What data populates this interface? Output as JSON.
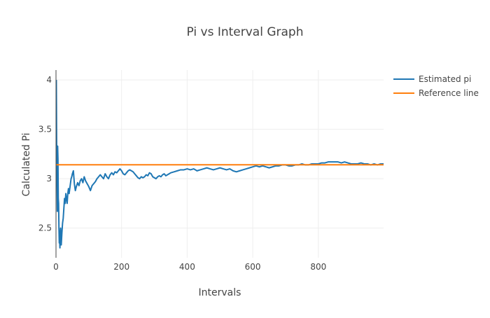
{
  "chart_data": {
    "type": "line",
    "title": "Pi vs Interval Graph",
    "xlabel": "Intervals",
    "ylabel": "Calculated Pi",
    "xlim": [
      0,
      999
    ],
    "ylim": [
      2.2,
      4.1
    ],
    "x_ticks": [
      0,
      200,
      400,
      600,
      800
    ],
    "y_ticks": [
      2.5,
      3,
      3.5,
      4
    ],
    "x_tick_labels": [
      "0",
      "200",
      "400",
      "600",
      "800"
    ],
    "y_tick_labels": [
      "2.5",
      "3",
      "3.5",
      "4"
    ],
    "grid": true,
    "legend_position": "top-right",
    "series": [
      {
        "name": "Estimated pi",
        "color": "#1f77b4",
        "points": [
          [
            1,
            4.0
          ],
          [
            2,
            3.33
          ],
          [
            3,
            3.0
          ],
          [
            4,
            2.67
          ],
          [
            5,
            3.33
          ],
          [
            6,
            3.2
          ],
          [
            7,
            2.8
          ],
          [
            8,
            2.75
          ],
          [
            9,
            2.5
          ],
          [
            10,
            2.35
          ],
          [
            11,
            2.4
          ],
          [
            12,
            2.3
          ],
          [
            13,
            2.45
          ],
          [
            14,
            2.5
          ],
          [
            15,
            2.4
          ],
          [
            16,
            2.33
          ],
          [
            18,
            2.45
          ],
          [
            20,
            2.55
          ],
          [
            22,
            2.6
          ],
          [
            24,
            2.7
          ],
          [
            26,
            2.8
          ],
          [
            28,
            2.75
          ],
          [
            30,
            2.85
          ],
          [
            32,
            2.8
          ],
          [
            34,
            2.75
          ],
          [
            36,
            2.85
          ],
          [
            38,
            2.9
          ],
          [
            40,
            2.85
          ],
          [
            42,
            2.9
          ],
          [
            44,
            2.95
          ],
          [
            46,
            3.0
          ],
          [
            48,
            3.02
          ],
          [
            50,
            3.05
          ],
          [
            53,
            3.08
          ],
          [
            56,
            2.95
          ],
          [
            59,
            2.88
          ],
          [
            62,
            2.92
          ],
          [
            66,
            2.96
          ],
          [
            70,
            2.93
          ],
          [
            74,
            2.98
          ],
          [
            78,
            3.0
          ],
          [
            82,
            2.96
          ],
          [
            86,
            3.02
          ],
          [
            90,
            2.98
          ],
          [
            95,
            2.95
          ],
          [
            100,
            2.92
          ],
          [
            105,
            2.88
          ],
          [
            110,
            2.93
          ],
          [
            115,
            2.95
          ],
          [
            120,
            2.97
          ],
          [
            125,
            3.0
          ],
          [
            130,
            3.02
          ],
          [
            135,
            3.04
          ],
          [
            140,
            3.02
          ],
          [
            145,
            3.0
          ],
          [
            150,
            3.05
          ],
          [
            155,
            3.02
          ],
          [
            160,
            3.0
          ],
          [
            165,
            3.04
          ],
          [
            170,
            3.06
          ],
          [
            175,
            3.04
          ],
          [
            180,
            3.07
          ],
          [
            185,
            3.06
          ],
          [
            190,
            3.08
          ],
          [
            195,
            3.1
          ],
          [
            200,
            3.08
          ],
          [
            205,
            3.05
          ],
          [
            210,
            3.04
          ],
          [
            215,
            3.06
          ],
          [
            220,
            3.08
          ],
          [
            225,
            3.09
          ],
          [
            230,
            3.08
          ],
          [
            235,
            3.07
          ],
          [
            240,
            3.05
          ],
          [
            245,
            3.03
          ],
          [
            250,
            3.01
          ],
          [
            255,
            3.0
          ],
          [
            260,
            3.02
          ],
          [
            265,
            3.01
          ],
          [
            270,
            3.02
          ],
          [
            275,
            3.04
          ],
          [
            280,
            3.03
          ],
          [
            285,
            3.06
          ],
          [
            290,
            3.05
          ],
          [
            295,
            3.02
          ],
          [
            300,
            3.01
          ],
          [
            305,
            3.0
          ],
          [
            310,
            3.02
          ],
          [
            315,
            3.03
          ],
          [
            320,
            3.02
          ],
          [
            325,
            3.04
          ],
          [
            330,
            3.05
          ],
          [
            335,
            3.03
          ],
          [
            340,
            3.04
          ],
          [
            345,
            3.05
          ],
          [
            350,
            3.06
          ],
          [
            360,
            3.07
          ],
          [
            370,
            3.08
          ],
          [
            380,
            3.09
          ],
          [
            390,
            3.09
          ],
          [
            400,
            3.1
          ],
          [
            410,
            3.09
          ],
          [
            420,
            3.1
          ],
          [
            430,
            3.08
          ],
          [
            440,
            3.09
          ],
          [
            450,
            3.1
          ],
          [
            460,
            3.11
          ],
          [
            470,
            3.1
          ],
          [
            480,
            3.09
          ],
          [
            490,
            3.1
          ],
          [
            500,
            3.11
          ],
          [
            510,
            3.1
          ],
          [
            520,
            3.09
          ],
          [
            530,
            3.1
          ],
          [
            540,
            3.08
          ],
          [
            550,
            3.07
          ],
          [
            560,
            3.08
          ],
          [
            570,
            3.09
          ],
          [
            580,
            3.1
          ],
          [
            590,
            3.11
          ],
          [
            600,
            3.12
          ],
          [
            610,
            3.13
          ],
          [
            620,
            3.12
          ],
          [
            630,
            3.13
          ],
          [
            640,
            3.12
          ],
          [
            650,
            3.11
          ],
          [
            660,
            3.12
          ],
          [
            670,
            3.13
          ],
          [
            680,
            3.13
          ],
          [
            690,
            3.14
          ],
          [
            700,
            3.14
          ],
          [
            710,
            3.13
          ],
          [
            720,
            3.13
          ],
          [
            730,
            3.14
          ],
          [
            740,
            3.14
          ],
          [
            750,
            3.15
          ],
          [
            760,
            3.14
          ],
          [
            770,
            3.14
          ],
          [
            780,
            3.15
          ],
          [
            790,
            3.15
          ],
          [
            800,
            3.15
          ],
          [
            810,
            3.16
          ],
          [
            820,
            3.16
          ],
          [
            830,
            3.17
          ],
          [
            840,
            3.17
          ],
          [
            850,
            3.17
          ],
          [
            860,
            3.17
          ],
          [
            870,
            3.16
          ],
          [
            880,
            3.17
          ],
          [
            890,
            3.16
          ],
          [
            900,
            3.15
          ],
          [
            910,
            3.15
          ],
          [
            920,
            3.15
          ],
          [
            930,
            3.16
          ],
          [
            940,
            3.15
          ],
          [
            950,
            3.15
          ],
          [
            960,
            3.14
          ],
          [
            970,
            3.15
          ],
          [
            980,
            3.14
          ],
          [
            990,
            3.15
          ],
          [
            999,
            3.15
          ]
        ]
      },
      {
        "name": "Reference line",
        "color": "#ff7f0e",
        "points": [
          [
            0,
            3.14159
          ],
          [
            999,
            3.14159
          ]
        ]
      }
    ]
  }
}
